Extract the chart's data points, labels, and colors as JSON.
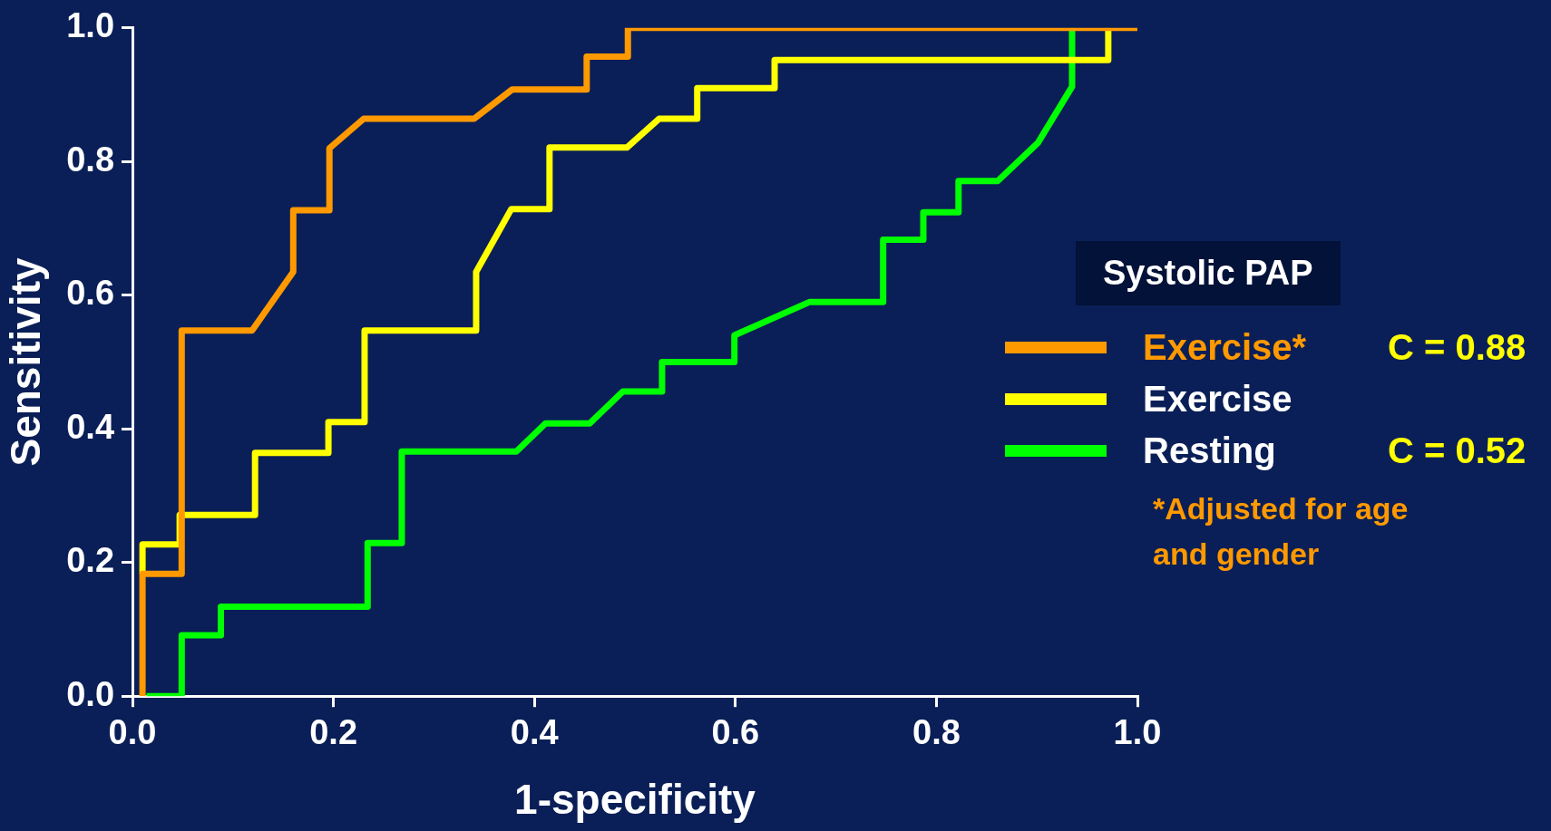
{
  "chart_data": {
    "type": "line",
    "xlabel": "1-specificity",
    "ylabel": "Sensitivity",
    "legend_title": "Systolic PAP",
    "xlim": [
      0,
      1
    ],
    "ylim": [
      0,
      1
    ],
    "xticks": [
      {
        "value": 0,
        "label": "0.0"
      },
      0.2,
      0.4,
      0.6,
      0.8,
      {
        "value": 1,
        "label": "1.0"
      }
    ],
    "yticks": [
      {
        "value": 0,
        "label": "0.0"
      },
      0.2,
      0.4,
      0.6,
      0.8,
      {
        "value": 1,
        "label": "1.0"
      }
    ],
    "grid": false,
    "legend": "right",
    "marker": "none",
    "line_style": "solid",
    "annotations": [
      "C = 0.88",
      "C = 0.52",
      "*Adjusted for age and gender"
    ],
    "series": [
      {
        "name": "Exercise*",
        "color": "#ff9900",
        "x": [
          0.01,
          0.01,
          0.049,
          0.049,
          0.119,
          0.16,
          0.16,
          0.196,
          0.196,
          0.23,
          0.34,
          0.378,
          0.452,
          0.452,
          0.493,
          0.493,
          1.0
        ],
        "values": [
          0,
          0.183,
          0.183,
          0.547,
          0.547,
          0.635,
          0.727,
          0.727,
          0.82,
          0.864,
          0.864,
          0.908,
          0.908,
          0.957,
          0.957,
          1.0,
          1.0
        ]
      },
      {
        "name": "Exercise",
        "color": "#ffff00",
        "x": [
          0.01,
          0.01,
          0.047,
          0.047,
          0.122,
          0.122,
          0.195,
          0.195,
          0.231,
          0.231,
          0.342,
          0.342,
          0.377,
          0.415,
          0.415,
          0.492,
          0.524,
          0.562,
          0.562,
          0.639,
          0.639,
          0.971,
          0.971
        ],
        "values": [
          0.183,
          0.227,
          0.227,
          0.271,
          0.271,
          0.364,
          0.364,
          0.41,
          0.41,
          0.547,
          0.547,
          0.635,
          0.729,
          0.729,
          0.821,
          0.821,
          0.864,
          0.864,
          0.91,
          0.91,
          0.952,
          0.952,
          1.0
        ]
      },
      {
        "name": "Resting",
        "color": "#00ff00",
        "x": [
          0.014,
          0.049,
          0.049,
          0.088,
          0.088,
          0.234,
          0.234,
          0.268,
          0.268,
          0.382,
          0.411,
          0.455,
          0.488,
          0.527,
          0.527,
          0.599,
          0.599,
          0.674,
          0.747,
          0.747,
          0.787,
          0.787,
          0.822,
          0.822,
          0.861,
          0.901,
          0.935,
          0.935
        ],
        "values": [
          0,
          0,
          0.091,
          0.091,
          0.134,
          0.134,
          0.229,
          0.229,
          0.366,
          0.366,
          0.408,
          0.408,
          0.456,
          0.456,
          0.5,
          0.5,
          0.54,
          0.59,
          0.59,
          0.683,
          0.683,
          0.724,
          0.724,
          0.771,
          0.771,
          0.828,
          0.912,
          1.0
        ]
      }
    ]
  }
}
